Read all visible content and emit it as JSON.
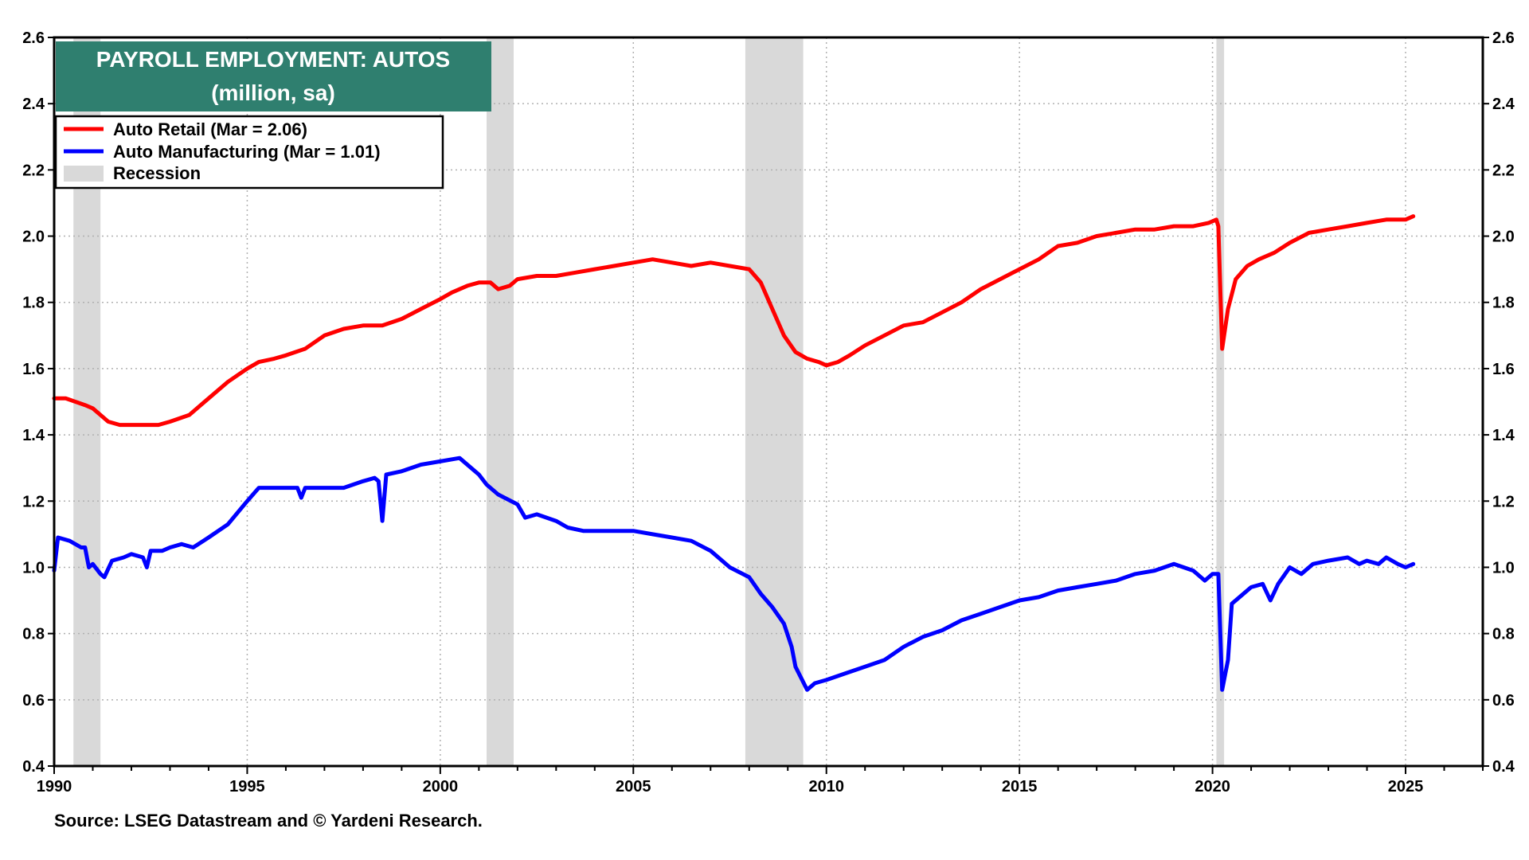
{
  "chart_data": {
    "type": "line",
    "title": "PAYROLL EMPLOYMENT: AUTOS",
    "subtitle": "(million, sa)",
    "source": "Source: LSEG Datastream and © Yardeni Research.",
    "xlim": [
      1990,
      2027
    ],
    "ylim": [
      0.4,
      2.6
    ],
    "x_ticks": [
      1990,
      1995,
      2000,
      2005,
      2010,
      2015,
      2020,
      2025
    ],
    "y_ticks": [
      0.4,
      0.6,
      0.8,
      1.0,
      1.2,
      1.4,
      1.6,
      1.8,
      2.0,
      2.2,
      2.4,
      2.6
    ],
    "y_tick_labels": [
      "0.4",
      "0.6",
      "0.8",
      "1.0",
      "1.2",
      "1.4",
      "1.6",
      "1.8",
      "2.0",
      "2.2",
      "2.4",
      "2.6"
    ],
    "grid": true,
    "legend_position": "top-left",
    "recessions": [
      {
        "start": 1990.5,
        "end": 1991.2
      },
      {
        "start": 2001.2,
        "end": 2001.9
      },
      {
        "start": 2007.9,
        "end": 2009.4
      },
      {
        "start": 2020.1,
        "end": 2020.3
      }
    ],
    "legend": {
      "recession_label": "Recession",
      "recession_color": "#d9d9d9"
    },
    "series": [
      {
        "name": "Auto Retail",
        "legend_label": "Auto Retail  (Mar = 2.06)",
        "color": "#ff0000",
        "points": [
          [
            1990.0,
            1.51
          ],
          [
            1990.3,
            1.51
          ],
          [
            1990.8,
            1.49
          ],
          [
            1991.0,
            1.48
          ],
          [
            1991.2,
            1.46
          ],
          [
            1991.4,
            1.44
          ],
          [
            1991.7,
            1.43
          ],
          [
            1992.0,
            1.43
          ],
          [
            1992.3,
            1.43
          ],
          [
            1992.7,
            1.43
          ],
          [
            1993.0,
            1.44
          ],
          [
            1993.5,
            1.46
          ],
          [
            1994.0,
            1.51
          ],
          [
            1994.5,
            1.56
          ],
          [
            1995.0,
            1.6
          ],
          [
            1995.3,
            1.62
          ],
          [
            1995.7,
            1.63
          ],
          [
            1996.0,
            1.64
          ],
          [
            1996.5,
            1.66
          ],
          [
            1997.0,
            1.7
          ],
          [
            1997.5,
            1.72
          ],
          [
            1998.0,
            1.73
          ],
          [
            1998.5,
            1.73
          ],
          [
            1999.0,
            1.75
          ],
          [
            1999.5,
            1.78
          ],
          [
            2000.0,
            1.81
          ],
          [
            2000.3,
            1.83
          ],
          [
            2000.7,
            1.85
          ],
          [
            2001.0,
            1.86
          ],
          [
            2001.3,
            1.86
          ],
          [
            2001.5,
            1.84
          ],
          [
            2001.8,
            1.85
          ],
          [
            2002.0,
            1.87
          ],
          [
            2002.5,
            1.88
          ],
          [
            2003.0,
            1.88
          ],
          [
            2003.5,
            1.89
          ],
          [
            2004.0,
            1.9
          ],
          [
            2004.5,
            1.91
          ],
          [
            2005.0,
            1.92
          ],
          [
            2005.5,
            1.93
          ],
          [
            2006.0,
            1.92
          ],
          [
            2006.5,
            1.91
          ],
          [
            2007.0,
            1.92
          ],
          [
            2007.5,
            1.91
          ],
          [
            2008.0,
            1.9
          ],
          [
            2008.3,
            1.86
          ],
          [
            2008.6,
            1.78
          ],
          [
            2008.9,
            1.7
          ],
          [
            2009.2,
            1.65
          ],
          [
            2009.5,
            1.63
          ],
          [
            2009.8,
            1.62
          ],
          [
            2010.0,
            1.61
          ],
          [
            2010.3,
            1.62
          ],
          [
            2010.6,
            1.64
          ],
          [
            2011.0,
            1.67
          ],
          [
            2011.5,
            1.7
          ],
          [
            2012.0,
            1.73
          ],
          [
            2012.5,
            1.74
          ],
          [
            2013.0,
            1.77
          ],
          [
            2013.5,
            1.8
          ],
          [
            2014.0,
            1.84
          ],
          [
            2014.5,
            1.87
          ],
          [
            2015.0,
            1.9
          ],
          [
            2015.5,
            1.93
          ],
          [
            2016.0,
            1.97
          ],
          [
            2016.5,
            1.98
          ],
          [
            2017.0,
            2.0
          ],
          [
            2017.5,
            2.01
          ],
          [
            2018.0,
            2.02
          ],
          [
            2018.5,
            2.02
          ],
          [
            2019.0,
            2.03
          ],
          [
            2019.5,
            2.03
          ],
          [
            2019.9,
            2.04
          ],
          [
            2020.1,
            2.05
          ],
          [
            2020.15,
            2.03
          ],
          [
            2020.25,
            1.66
          ],
          [
            2020.4,
            1.78
          ],
          [
            2020.6,
            1.87
          ],
          [
            2020.9,
            1.91
          ],
          [
            2021.2,
            1.93
          ],
          [
            2021.6,
            1.95
          ],
          [
            2022.0,
            1.98
          ],
          [
            2022.5,
            2.01
          ],
          [
            2023.0,
            2.02
          ],
          [
            2023.5,
            2.03
          ],
          [
            2024.0,
            2.04
          ],
          [
            2024.5,
            2.05
          ],
          [
            2025.0,
            2.05
          ],
          [
            2025.2,
            2.06
          ]
        ]
      },
      {
        "name": "Auto Manufacturing",
        "legend_label": "Auto Manufacturing  (Mar = 1.01)",
        "color": "#0000ff",
        "points": [
          [
            1990.0,
            0.99
          ],
          [
            1990.1,
            1.09
          ],
          [
            1990.4,
            1.08
          ],
          [
            1990.7,
            1.06
          ],
          [
            1990.8,
            1.06
          ],
          [
            1990.9,
            1.0
          ],
          [
            1991.0,
            1.01
          ],
          [
            1991.2,
            0.98
          ],
          [
            1991.3,
            0.97
          ],
          [
            1991.5,
            1.02
          ],
          [
            1991.8,
            1.03
          ],
          [
            1992.0,
            1.04
          ],
          [
            1992.3,
            1.03
          ],
          [
            1992.4,
            1.0
          ],
          [
            1992.5,
            1.05
          ],
          [
            1992.8,
            1.05
          ],
          [
            1993.0,
            1.06
          ],
          [
            1993.3,
            1.07
          ],
          [
            1993.6,
            1.06
          ],
          [
            1994.0,
            1.09
          ],
          [
            1994.5,
            1.13
          ],
          [
            1995.0,
            1.2
          ],
          [
            1995.3,
            1.24
          ],
          [
            1995.6,
            1.24
          ],
          [
            1996.0,
            1.24
          ],
          [
            1996.3,
            1.24
          ],
          [
            1996.4,
            1.21
          ],
          [
            1996.5,
            1.24
          ],
          [
            1997.0,
            1.24
          ],
          [
            1997.5,
            1.24
          ],
          [
            1998.0,
            1.26
          ],
          [
            1998.3,
            1.27
          ],
          [
            1998.4,
            1.26
          ],
          [
            1998.5,
            1.14
          ],
          [
            1998.6,
            1.28
          ],
          [
            1999.0,
            1.29
          ],
          [
            1999.5,
            1.31
          ],
          [
            2000.0,
            1.32
          ],
          [
            2000.5,
            1.33
          ],
          [
            2000.8,
            1.3
          ],
          [
            2001.0,
            1.28
          ],
          [
            2001.2,
            1.25
          ],
          [
            2001.5,
            1.22
          ],
          [
            2002.0,
            1.19
          ],
          [
            2002.2,
            1.15
          ],
          [
            2002.5,
            1.16
          ],
          [
            2003.0,
            1.14
          ],
          [
            2003.3,
            1.12
          ],
          [
            2003.7,
            1.11
          ],
          [
            2004.0,
            1.11
          ],
          [
            2004.5,
            1.11
          ],
          [
            2005.0,
            1.11
          ],
          [
            2005.5,
            1.1
          ],
          [
            2006.0,
            1.09
          ],
          [
            2006.5,
            1.08
          ],
          [
            2007.0,
            1.05
          ],
          [
            2007.5,
            1.0
          ],
          [
            2008.0,
            0.97
          ],
          [
            2008.3,
            0.92
          ],
          [
            2008.6,
            0.88
          ],
          [
            2008.9,
            0.83
          ],
          [
            2009.1,
            0.76
          ],
          [
            2009.2,
            0.7
          ],
          [
            2009.5,
            0.63
          ],
          [
            2009.7,
            0.65
          ],
          [
            2010.0,
            0.66
          ],
          [
            2010.5,
            0.68
          ],
          [
            2011.0,
            0.7
          ],
          [
            2011.5,
            0.72
          ],
          [
            2012.0,
            0.76
          ],
          [
            2012.5,
            0.79
          ],
          [
            2013.0,
            0.81
          ],
          [
            2013.5,
            0.84
          ],
          [
            2014.0,
            0.86
          ],
          [
            2014.5,
            0.88
          ],
          [
            2015.0,
            0.9
          ],
          [
            2015.5,
            0.91
          ],
          [
            2016.0,
            0.93
          ],
          [
            2016.5,
            0.94
          ],
          [
            2017.0,
            0.95
          ],
          [
            2017.5,
            0.96
          ],
          [
            2018.0,
            0.98
          ],
          [
            2018.5,
            0.99
          ],
          [
            2019.0,
            1.01
          ],
          [
            2019.5,
            0.99
          ],
          [
            2019.8,
            0.96
          ],
          [
            2020.0,
            0.98
          ],
          [
            2020.15,
            0.98
          ],
          [
            2020.25,
            0.63
          ],
          [
            2020.4,
            0.72
          ],
          [
            2020.5,
            0.89
          ],
          [
            2020.8,
            0.92
          ],
          [
            2021.0,
            0.94
          ],
          [
            2021.3,
            0.95
          ],
          [
            2021.5,
            0.9
          ],
          [
            2021.7,
            0.95
          ],
          [
            2022.0,
            1.0
          ],
          [
            2022.3,
            0.98
          ],
          [
            2022.6,
            1.01
          ],
          [
            2023.0,
            1.02
          ],
          [
            2023.5,
            1.03
          ],
          [
            2023.8,
            1.01
          ],
          [
            2024.0,
            1.02
          ],
          [
            2024.3,
            1.01
          ],
          [
            2024.5,
            1.03
          ],
          [
            2024.8,
            1.01
          ],
          [
            2025.0,
            1.0
          ],
          [
            2025.2,
            1.01
          ]
        ]
      }
    ]
  }
}
